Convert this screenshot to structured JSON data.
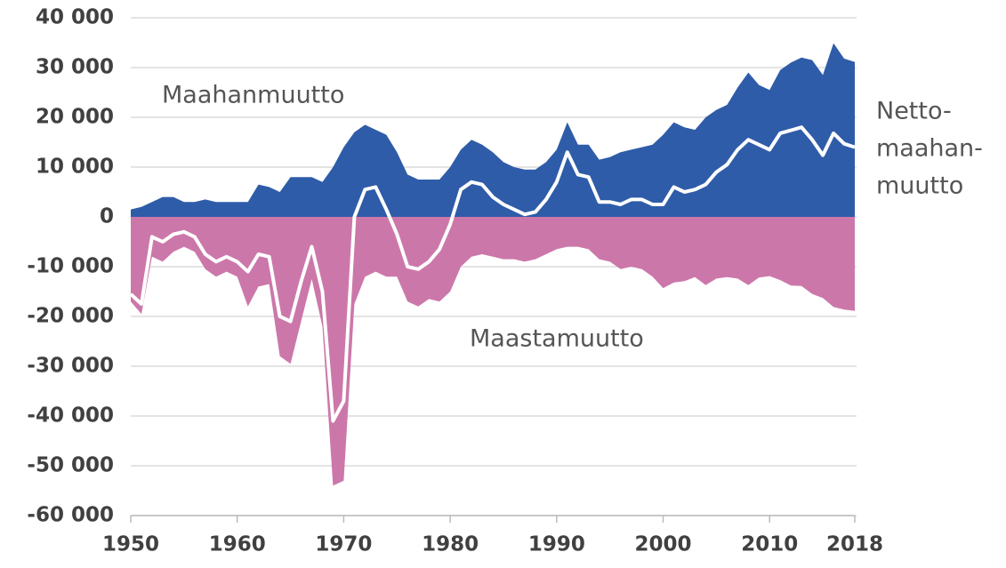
{
  "chart_data": {
    "type": "area",
    "x": [
      1950,
      1951,
      1952,
      1953,
      1954,
      1955,
      1956,
      1957,
      1958,
      1959,
      1960,
      1961,
      1962,
      1963,
      1964,
      1965,
      1966,
      1967,
      1968,
      1969,
      1970,
      1971,
      1972,
      1973,
      1974,
      1975,
      1976,
      1977,
      1978,
      1979,
      1980,
      1981,
      1982,
      1983,
      1984,
      1985,
      1986,
      1987,
      1988,
      1989,
      1990,
      1991,
      1992,
      1993,
      1994,
      1995,
      1996,
      1997,
      1998,
      1999,
      2000,
      2001,
      2002,
      2003,
      2004,
      2005,
      2006,
      2007,
      2008,
      2009,
      2010,
      2011,
      2012,
      2013,
      2014,
      2015,
      2016,
      2017,
      2018
    ],
    "series": [
      {
        "name": "Maahanmuutto",
        "color": "#2e5ca8",
        "values": [
          1500,
          2000,
          3000,
          4000,
          4000,
          3000,
          3000,
          3500,
          3000,
          3000,
          3000,
          3000,
          6500,
          6000,
          5000,
          8000,
          8000,
          8000,
          7000,
          10000,
          14000,
          17000,
          18500,
          17500,
          16500,
          13000,
          8500,
          7500,
          7500,
          7500,
          10000,
          13500,
          15500,
          14500,
          13000,
          11000,
          10000,
          9500,
          9500,
          11000,
          13500,
          19000,
          14500,
          14500,
          11500,
          12000,
          13000,
          13500,
          14000,
          14500,
          16500,
          19000,
          18000,
          17500,
          20000,
          21500,
          22500,
          26000,
          29000,
          26500,
          25500,
          29500,
          31000,
          32000,
          31500,
          28500,
          34900,
          31800,
          31100
        ]
      },
      {
        "name": "Maastamuutto",
        "color": "#cc77aa",
        "values": [
          -17000,
          -19500,
          -8000,
          -9000,
          -7000,
          -6000,
          -7000,
          -10500,
          -12000,
          -11000,
          -12000,
          -18000,
          -14000,
          -13500,
          -28000,
          -29500,
          -21000,
          -12500,
          -22000,
          -54000,
          -53000,
          -17500,
          -12000,
          -11000,
          -12000,
          -12000,
          -17000,
          -18000,
          -16500,
          -17000,
          -15000,
          -10000,
          -8000,
          -7500,
          -8000,
          -8500,
          -8500,
          -9000,
          -8500,
          -7500,
          -6500,
          -6000,
          -6000,
          -6500,
          -8500,
          -9000,
          -10500,
          -10000,
          -10500,
          -12000,
          -14300,
          -13200,
          -12900,
          -12100,
          -13700,
          -12400,
          -12100,
          -12400,
          -13700,
          -12200,
          -11900,
          -12700,
          -13800,
          -13900,
          -15500,
          -16300,
          -18100,
          -18600,
          -18900
        ]
      },
      {
        "name": [
          "Netto-",
          "maahan-",
          "muutto"
        ],
        "color": "#ffffff",
        "values": [
          -15500,
          -17500,
          -4000,
          -5000,
          -3500,
          -3000,
          -4000,
          -7500,
          -9000,
          -8000,
          -9000,
          -11000,
          -7500,
          -8000,
          -20000,
          -21000,
          -13000,
          -6000,
          -15000,
          -41000,
          -37000,
          0,
          5500,
          6000,
          1500,
          -3500,
          -10000,
          -10500,
          -9000,
          -6500,
          -1500,
          5500,
          7000,
          6500,
          4000,
          2500,
          1500,
          500,
          1000,
          3500,
          7000,
          13000,
          8500,
          8000,
          3000,
          3000,
          2500,
          3500,
          3500,
          2500,
          2500,
          6000,
          5000,
          5500,
          6500,
          9000,
          10500,
          13500,
          15500,
          14500,
          13500,
          16800,
          17400,
          18000,
          15500,
          12400,
          16800,
          14700,
          14000
        ]
      }
    ],
    "xlim": [
      1950,
      2018
    ],
    "xticks": [
      1950,
      1960,
      1970,
      1980,
      1990,
      2000,
      2010,
      2018
    ],
    "ylim": [
      -60000,
      40000
    ],
    "yticks": [
      {
        "value": -60000,
        "label": "-60 000"
      },
      {
        "value": -50000,
        "label": "-50 000"
      },
      {
        "value": -40000,
        "label": "-40 000"
      },
      {
        "value": -30000,
        "label": "-30 000"
      },
      {
        "value": -20000,
        "label": "-20 000"
      },
      {
        "value": -10000,
        "label": "-10 000"
      },
      0,
      {
        "value": 10000,
        "label": "10 000"
      },
      {
        "value": 20000,
        "label": "20 000"
      },
      {
        "value": 30000,
        "label": "30 000"
      },
      {
        "value": 40000,
        "label": "40 000"
      }
    ],
    "grid": true
  }
}
